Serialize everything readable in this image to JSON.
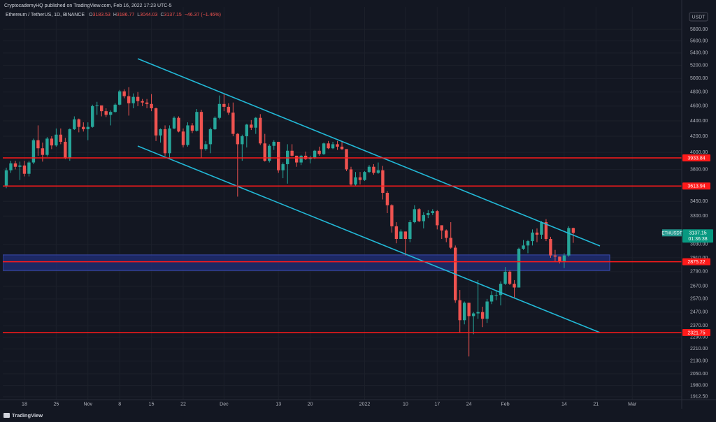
{
  "chart_data": {
    "type": "candlestick",
    "publisher": "CryptocademyHQ published on TradingView.com, Feb 16, 2022 17:23 UTC-5",
    "title": "Ethereum / TetherUS, 1D, BINANCE",
    "legend": [
      {
        "label": "O",
        "value": 3183.53
      },
      {
        "label": "H",
        "value": 3186.77
      },
      {
        "label": "L",
        "value": 3044.03
      },
      {
        "label": "C",
        "value": 3137.15
      }
    ],
    "change": {
      "value": -46.37,
      "label": "−46.37 (−1.46%)"
    },
    "currency": "USDT",
    "symbol": "ETHUSDT",
    "last_price": 3137.15,
    "countdown": "01:36:38",
    "footer": "TradingView",
    "log_scale": true,
    "grid": true,
    "up_color": "#26a69a",
    "down_color": "#ef5350",
    "level_color": "#ff1a1a",
    "zone_color": "#1f2b6e",
    "channel_color": "#22b8d6",
    "levels": [
      3933.84,
      3613.94,
      2875.22,
      2321.75
    ],
    "zone": [
      2800,
      2935
    ],
    "ylim": [
      1896,
      6205
    ],
    "yticks": [
      {
        "value": 5800,
        "label": "5800.00"
      },
      {
        "value": 5600,
        "label": "5600.00"
      },
      {
        "value": 5400,
        "label": "5400.00"
      },
      {
        "value": 5200,
        "label": "5200.00"
      },
      {
        "value": 5000,
        "label": "5000.00"
      },
      {
        "value": 4800,
        "label": "4800.00"
      },
      {
        "value": 4600,
        "label": "4600.00"
      },
      {
        "value": 4400,
        "label": "4400.00"
      },
      {
        "value": 4200,
        "label": "4200.00"
      },
      {
        "value": 4000,
        "label": "4000.00"
      },
      {
        "value": 3800,
        "label": "3800.00"
      },
      {
        "value": 3450,
        "label": "3450.00"
      },
      {
        "value": 3300,
        "label": "3300.00"
      },
      {
        "value": 3030,
        "label": "3030.00"
      },
      {
        "value": 2910,
        "label": "2910.00"
      },
      {
        "value": 2790,
        "label": "2790.00"
      },
      {
        "value": 2670,
        "label": "2670.00"
      },
      {
        "value": 2570,
        "label": "2570.00"
      },
      {
        "value": 2470,
        "label": "2470.00"
      },
      {
        "value": 2370,
        "label": "2370.00"
      },
      {
        "value": 2290,
        "label": "2290.00"
      },
      {
        "value": 2210,
        "label": "2210.00"
      },
      {
        "value": 2130,
        "label": "2130.00"
      },
      {
        "value": 2050,
        "label": "2050.00"
      },
      {
        "value": 1980,
        "label": "1980.00"
      },
      {
        "value": 1912.5,
        "label": "1912.50"
      }
    ],
    "categories": [
      null,
      null,
      null,
      null,
      "18",
      null,
      null,
      null,
      null,
      null,
      null,
      "25",
      null,
      null,
      null,
      null,
      null,
      null,
      "Nov",
      null,
      null,
      null,
      null,
      null,
      null,
      "8",
      null,
      null,
      null,
      null,
      null,
      null,
      "15",
      null,
      null,
      null,
      null,
      null,
      null,
      "22",
      null,
      null,
      null,
      null,
      null,
      null,
      null,
      null,
      "Dec",
      null,
      null,
      null,
      null,
      null,
      null,
      null,
      null,
      null,
      null,
      null,
      "13",
      null,
      null,
      null,
      null,
      null,
      null,
      "20",
      null,
      null,
      null,
      null,
      null,
      null,
      null,
      null,
      null,
      null,
      null,
      "2022",
      null,
      null,
      null,
      null,
      null,
      null,
      null,
      null,
      "10",
      null,
      null,
      null,
      null,
      null,
      null,
      "17",
      null,
      null,
      null,
      null,
      null,
      null,
      "24",
      null,
      null,
      null,
      null,
      null,
      null,
      null,
      "Feb",
      null,
      null,
      null,
      null,
      null,
      null,
      null,
      null,
      null,
      null,
      null,
      null,
      "14",
      null,
      null,
      null,
      null,
      null,
      null,
      "21",
      null,
      null,
      null,
      null,
      null,
      null,
      null,
      "Mar"
    ],
    "open": [
      3610,
      3790,
      3870,
      3830,
      3845,
      3750,
      3880,
      4150,
      4050,
      3970,
      4170,
      4085,
      4220,
      4130,
      3930,
      4290,
      4420,
      4320,
      4290,
      4320,
      4600,
      4610,
      4530,
      4480,
      4520,
      4620,
      4810,
      4740,
      4640,
      4730,
      4670,
      4650,
      4630,
      4570,
      4210,
      4290,
      3990,
      4300,
      4440,
      4260,
      4090,
      4340,
      4270,
      4520,
      4040,
      4100,
      4290,
      4440,
      4630,
      4590,
      4510,
      4230,
      4100,
      4200,
      4350,
      4310,
      4440,
      4110,
      3900,
      4080,
      4130,
      3790,
      3860,
      4020,
      3960,
      3880,
      3960,
      3920,
      3940,
      4020,
      3980,
      4110,
      4050,
      4100,
      4070,
      4040,
      3800,
      3630,
      3710,
      3680,
      3770,
      3830,
      3760,
      3790,
      3540,
      3410,
      3200,
      3080,
      3150,
      3080,
      3240,
      3370,
      3250,
      3310,
      3330,
      3350,
      3210,
      3160,
      3090,
      3000,
      2560,
      2410,
      2540,
      2440,
      2460,
      2470,
      2420,
      2550,
      2600,
      2600,
      2690,
      2790,
      2690,
      2660,
      2990,
      3020,
      3060,
      3140,
      3120,
      3240,
      3080,
      2930,
      2920,
      2880,
      2930,
      3183.53,
      null,
      null,
      null,
      null,
      null,
      null,
      null,
      null,
      null,
      null,
      null,
      null,
      null
    ],
    "high": [
      3820,
      3900,
      3900,
      3890,
      3900,
      3900,
      4170,
      4340,
      4120,
      4190,
      4200,
      4300,
      4300,
      4180,
      4300,
      4460,
      4430,
      4380,
      4380,
      4620,
      4660,
      4580,
      4570,
      4540,
      4640,
      4830,
      4840,
      4870,
      4780,
      4800,
      4700,
      4700,
      4770,
      4580,
      4300,
      4340,
      4340,
      4460,
      4460,
      4300,
      4380,
      4370,
      4560,
      4550,
      4140,
      4310,
      4460,
      4750,
      4770,
      4640,
      4650,
      4240,
      4220,
      4360,
      4410,
      4450,
      4490,
      4230,
      4100,
      4150,
      4130,
      3880,
      4100,
      4100,
      3960,
      3970,
      4010,
      3960,
      4030,
      4070,
      4120,
      4140,
      4130,
      4140,
      4130,
      4040,
      3830,
      3770,
      3770,
      3780,
      3850,
      3860,
      3880,
      3840,
      3560,
      3420,
      3240,
      3170,
      3150,
      3260,
      3410,
      3380,
      3340,
      3360,
      3370,
      3360,
      3210,
      3170,
      3240,
      3020,
      2640,
      2550,
      2540,
      2470,
      2720,
      2510,
      2570,
      2630,
      2640,
      2710,
      2830,
      2800,
      2720,
      3000,
      3070,
      3070,
      3170,
      3180,
      3250,
      3270,
      3100,
      2980,
      2920,
      2950,
      3200,
      3186.77,
      null,
      null,
      null,
      null,
      null,
      null,
      null,
      null,
      null,
      null,
      null,
      null,
      null
    ],
    "low": [
      3590,
      3760,
      3800,
      3680,
      3720,
      3720,
      3860,
      3960,
      3890,
      3950,
      4040,
      4070,
      4100,
      3920,
      3900,
      4280,
      4250,
      4260,
      4150,
      4310,
      4480,
      4460,
      4450,
      4340,
      4510,
      4610,
      4710,
      4470,
      4570,
      4600,
      4600,
      4570,
      4530,
      4140,
      4120,
      3960,
      3930,
      4290,
      4250,
      4060,
      4070,
      4240,
      4260,
      3930,
      4020,
      3990,
      4280,
      4420,
      4530,
      4480,
      4200,
      3500,
      3900,
      4060,
      4280,
      4230,
      4090,
      3890,
      3880,
      4030,
      3760,
      3700,
      3640,
      3950,
      3830,
      3850,
      3910,
      3870,
      3920,
      3960,
      3970,
      4040,
      4040,
      4030,
      4030,
      3780,
      3620,
      3620,
      3630,
      3670,
      3760,
      3740,
      3750,
      3470,
      3330,
      3140,
      3040,
      3080,
      2930,
      3050,
      3230,
      3240,
      3180,
      3280,
      3310,
      3170,
      3080,
      3050,
      2990,
      2540,
      2320,
      2380,
      2160,
      2310,
      2420,
      2360,
      2390,
      2530,
      2560,
      2520,
      2680,
      2680,
      2580,
      2660,
      2980,
      2950,
      3020,
      3050,
      3080,
      3060,
      2910,
      2880,
      2860,
      2820,
      2920,
      3044.03,
      null,
      null,
      null,
      null,
      null,
      null,
      null,
      null,
      null,
      null,
      null,
      null,
      null
    ],
    "close": [
      3790,
      3870,
      3830,
      3845,
      3750,
      3880,
      4150,
      4050,
      3970,
      4170,
      4085,
      4220,
      4130,
      3930,
      4290,
      4420,
      4320,
      4290,
      4320,
      4600,
      4610,
      4530,
      4480,
      4520,
      4620,
      4810,
      4740,
      4640,
      4730,
      4670,
      4650,
      4630,
      4570,
      4210,
      4290,
      3990,
      4300,
      4440,
      4260,
      4090,
      4340,
      4270,
      4520,
      4040,
      4100,
      4290,
      4440,
      4630,
      4590,
      4510,
      4230,
      4100,
      4200,
      4350,
      4310,
      4440,
      4110,
      3900,
      4080,
      4130,
      3790,
      3860,
      4020,
      3960,
      3880,
      3960,
      3920,
      3940,
      4020,
      3980,
      4110,
      4050,
      4100,
      4070,
      4040,
      3800,
      3630,
      3710,
      3680,
      3770,
      3830,
      3760,
      3790,
      3540,
      3410,
      3200,
      3080,
      3150,
      3080,
      3240,
      3370,
      3250,
      3310,
      3330,
      3350,
      3210,
      3160,
      3090,
      3000,
      2560,
      2410,
      2540,
      2440,
      2460,
      2470,
      2420,
      2550,
      2600,
      2600,
      2690,
      2790,
      2690,
      2660,
      2990,
      3020,
      3060,
      3140,
      3120,
      3240,
      3080,
      2930,
      2920,
      2880,
      2930,
      3183.53,
      3137.15,
      null,
      null,
      null,
      null,
      null,
      null,
      null,
      null,
      null,
      null,
      null,
      null,
      null
    ]
  }
}
